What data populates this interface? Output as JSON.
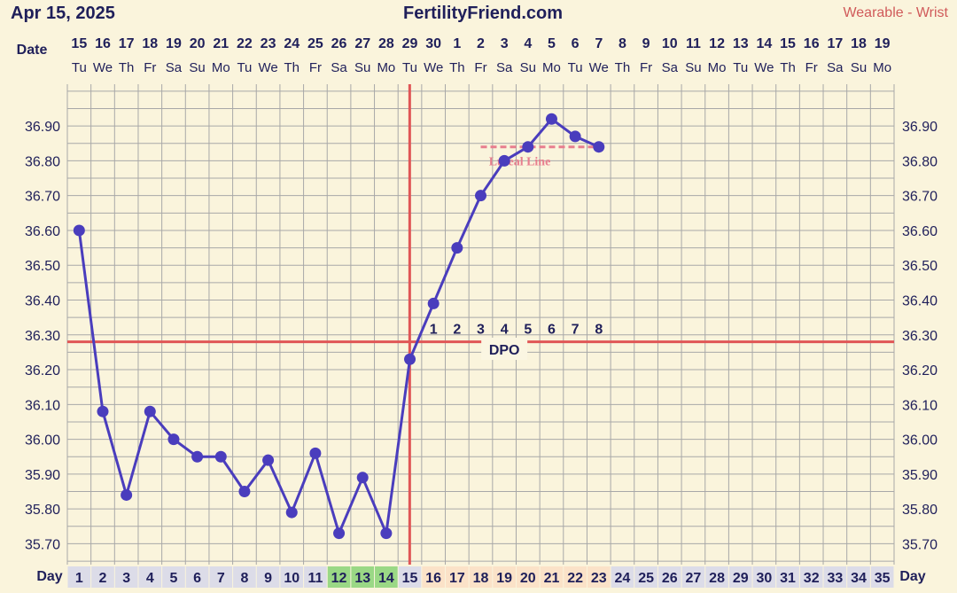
{
  "header": {
    "date": "Apr 15, 2025",
    "brand": "FertilityFriend.com",
    "device": "Wearable - Wrist"
  },
  "labels": {
    "date_row": "Date",
    "day_row": "Day",
    "dpo": "DPO",
    "luteal_line": "Luteal Line"
  },
  "colors": {
    "line": "#4a3dbd",
    "coverline": "#e05656",
    "luteal": "#e87e8e",
    "grid": "#a8a8a8",
    "background": "#faf4dc",
    "fertile_cells": "#9ad885",
    "luteal_cells": "#fbe2c8",
    "day_cells": "#dcdce8",
    "text": "#1f1f5a"
  },
  "chart_data": {
    "type": "line",
    "x_label": "Day",
    "cycle_days": [
      1,
      2,
      3,
      4,
      5,
      6,
      7,
      8,
      9,
      10,
      11,
      12,
      13,
      14,
      15,
      16,
      17,
      18,
      19,
      20,
      21,
      22,
      23,
      24,
      25,
      26,
      27,
      28,
      29,
      30,
      31,
      32,
      33,
      34,
      35
    ],
    "dates": [
      "15",
      "16",
      "17",
      "18",
      "19",
      "20",
      "21",
      "22",
      "23",
      "24",
      "25",
      "26",
      "27",
      "28",
      "29",
      "30",
      "1",
      "2",
      "3",
      "4",
      "5",
      "6",
      "7",
      "8",
      "9",
      "10",
      "11",
      "12",
      "13",
      "14",
      "15",
      "16",
      "17",
      "18",
      "19"
    ],
    "weekdays": [
      "Tu",
      "We",
      "Th",
      "Fr",
      "Sa",
      "Su",
      "Mo",
      "Tu",
      "We",
      "Th",
      "Fr",
      "Sa",
      "Su",
      "Mo",
      "Tu",
      "We",
      "Th",
      "Fr",
      "Sa",
      "Su",
      "Mo",
      "Tu",
      "We",
      "Th",
      "Fr",
      "Sa",
      "Su",
      "Mo",
      "Tu",
      "We",
      "Th",
      "Fr",
      "Sa",
      "Su",
      "Mo"
    ],
    "y_ticks": [
      "36.90",
      "36.80",
      "36.70",
      "36.60",
      "36.50",
      "36.40",
      "36.30",
      "36.20",
      "36.10",
      "36.00",
      "35.90",
      "35.80",
      "35.70"
    ],
    "ylim": [
      35.64,
      37.02
    ],
    "series": [
      {
        "values": [
          {
            "day": 1,
            "temp": 36.6
          },
          {
            "day": 2,
            "temp": 36.08
          },
          {
            "day": 3,
            "temp": 35.84
          },
          {
            "day": 4,
            "temp": 36.08
          },
          {
            "day": 5,
            "temp": 36.0
          },
          {
            "day": 6,
            "temp": 35.95
          },
          {
            "day": 7,
            "temp": 35.95
          },
          {
            "day": 8,
            "temp": 35.85
          },
          {
            "day": 9,
            "temp": 35.94
          },
          {
            "day": 10,
            "temp": 35.79
          },
          {
            "day": 11,
            "temp": 35.96
          },
          {
            "day": 12,
            "temp": 35.73
          },
          {
            "day": 13,
            "temp": 35.89
          },
          {
            "day": 14,
            "temp": 35.73
          },
          {
            "day": 15,
            "temp": 36.23
          },
          {
            "day": 16,
            "temp": 36.39
          },
          {
            "day": 17,
            "temp": 36.55
          },
          {
            "day": 18,
            "temp": 36.7
          },
          {
            "day": 19,
            "temp": 36.8
          },
          {
            "day": 20,
            "temp": 36.84
          },
          {
            "day": 21,
            "temp": 36.92
          },
          {
            "day": 22,
            "temp": 36.87
          },
          {
            "day": 23,
            "temp": 36.84
          }
        ]
      }
    ],
    "coverline": 36.28,
    "ovulation_day": 15,
    "luteal_line": {
      "temp": 36.84,
      "from_day": 18,
      "to_day": 23
    },
    "dpo": [
      {
        "day": 16,
        "n": "1"
      },
      {
        "day": 17,
        "n": "2"
      },
      {
        "day": 18,
        "n": "3"
      },
      {
        "day": 19,
        "n": "4"
      },
      {
        "day": 20,
        "n": "5"
      },
      {
        "day": 21,
        "n": "6"
      },
      {
        "day": 22,
        "n": "7"
      },
      {
        "day": 23,
        "n": "8"
      }
    ],
    "fertile_days": [
      10,
      11,
      12,
      13,
      14
    ],
    "luteal_days": [
      16,
      17,
      18,
      19,
      20,
      21,
      22,
      23
    ]
  }
}
